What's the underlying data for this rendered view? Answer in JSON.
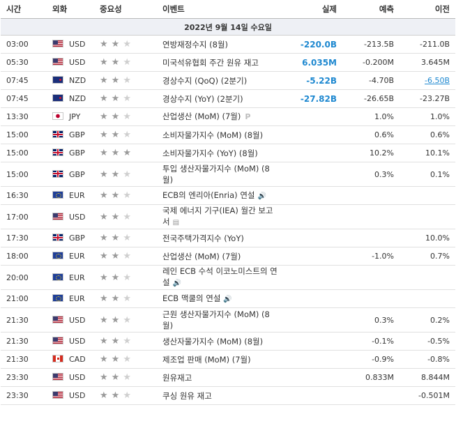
{
  "header": {
    "time": "시간",
    "currency": "외화",
    "importance": "중요성",
    "event": "이벤트",
    "actual": "실제",
    "forecast": "예측",
    "previous": "이전"
  },
  "date_label": "2022년 9월 14일 수요일",
  "colors": {
    "accent_blue": "#1e88d0",
    "date_row_bg": "#eef0f5"
  },
  "rows": [
    {
      "time": "03:00",
      "flag": "us-flag-icon",
      "cur": "USD",
      "stars": 2,
      "event": "연방재정수지 (8월)",
      "actual": "-220.0B",
      "actual_color": "blue",
      "forecast": "-213.5B",
      "previous": "-211.0B"
    },
    {
      "time": "05:30",
      "flag": "us-flag-icon",
      "cur": "USD",
      "stars": 2,
      "event": "미국석유협회 주간 원유 재고",
      "actual": "6.035M",
      "actual_color": "blue",
      "forecast": "-0.200M",
      "previous": "3.645M"
    },
    {
      "time": "07:45",
      "flag": "nz-flag-icon",
      "cur": "NZD",
      "stars": 2,
      "event": "경상수지 (QoQ) (2분기)",
      "actual": "-5.22B",
      "actual_color": "blue",
      "forecast": "-4.70B",
      "previous": "-6.50B",
      "previous_revised": true
    },
    {
      "time": "07:45",
      "flag": "nz-flag-icon",
      "cur": "NZD",
      "stars": 2,
      "event": "경상수지 (YoY) (2분기)",
      "actual": "-27.82B",
      "actual_color": "blue",
      "forecast": "-26.65B",
      "previous": "-23.27B"
    },
    {
      "time": "13:30",
      "flag": "jp-flag-icon",
      "cur": "JPY",
      "stars": 2,
      "event": "산업생산 (MoM) (7월)",
      "event_icon": "P",
      "actual": "",
      "forecast": "1.0%",
      "previous": "1.0%"
    },
    {
      "time": "15:00",
      "flag": "gb-flag-icon",
      "cur": "GBP",
      "stars": 2,
      "event": "소비자물가지수 (MoM) (8월)",
      "actual": "",
      "forecast": "0.6%",
      "previous": "0.6%"
    },
    {
      "time": "15:00",
      "flag": "gb-flag-icon",
      "cur": "GBP",
      "stars": 3,
      "event": "소비자물가지수 (YoY) (8월)",
      "actual": "",
      "forecast": "10.2%",
      "previous": "10.1%"
    },
    {
      "time": "15:00",
      "flag": "gb-flag-icon",
      "cur": "GBP",
      "stars": 2,
      "event": "투입 생산자물가지수 (MoM) (8월)",
      "tall": true,
      "actual": "",
      "forecast": "0.3%",
      "previous": "0.1%"
    },
    {
      "time": "16:30",
      "flag": "eu-flag-icon",
      "cur": "EUR",
      "stars": 2,
      "event": "ECB의 엔리아(Enria) 연설",
      "event_icon": "speaker",
      "actual": "",
      "forecast": "",
      "previous": ""
    },
    {
      "time": "17:00",
      "flag": "us-flag-icon",
      "cur": "USD",
      "stars": 2,
      "event": "국제 에너지 기구(IEA) 월간 보고서",
      "event_icon": "report",
      "tall": true,
      "actual": "",
      "forecast": "",
      "previous": ""
    },
    {
      "time": "17:30",
      "flag": "gb-flag-icon",
      "cur": "GBP",
      "stars": 2,
      "event": "전국주택가격지수 (YoY)",
      "actual": "",
      "forecast": "",
      "previous": "10.0%"
    },
    {
      "time": "18:00",
      "flag": "eu-flag-icon",
      "cur": "EUR",
      "stars": 2,
      "event": "산업생산 (MoM) (7월)",
      "actual": "",
      "forecast": "-1.0%",
      "previous": "0.7%"
    },
    {
      "time": "20:00",
      "flag": "eu-flag-icon",
      "cur": "EUR",
      "stars": 2,
      "event": "레인 ECB 수석 이코노미스트의 연설",
      "event_icon": "speaker",
      "tall": true,
      "actual": "",
      "forecast": "",
      "previous": ""
    },
    {
      "time": "21:00",
      "flag": "eu-flag-icon",
      "cur": "EUR",
      "stars": 2,
      "event": "ECB 맥쿨의 연설",
      "event_icon": "speaker",
      "actual": "",
      "forecast": "",
      "previous": ""
    },
    {
      "time": "21:30",
      "flag": "us-flag-icon",
      "cur": "USD",
      "stars": 2,
      "event": "근원 생산자물가지수 (MoM) (8월)",
      "tall": true,
      "actual": "",
      "forecast": "0.3%",
      "previous": "0.2%"
    },
    {
      "time": "21:30",
      "flag": "us-flag-icon",
      "cur": "USD",
      "stars": 2,
      "event": "생산자물가지수 (MoM) (8월)",
      "actual": "",
      "forecast": "-0.1%",
      "previous": "-0.5%"
    },
    {
      "time": "21:30",
      "flag": "ca-flag-icon",
      "cur": "CAD",
      "stars": 2,
      "event": "제조업 판매 (MoM) (7월)",
      "actual": "",
      "forecast": "-0.9%",
      "previous": "-0.8%"
    },
    {
      "time": "23:30",
      "flag": "us-flag-icon",
      "cur": "USD",
      "stars": 2,
      "event": "원유재고",
      "actual": "",
      "forecast": "0.833M",
      "previous": "8.844M"
    },
    {
      "time": "23:30",
      "flag": "us-flag-icon",
      "cur": "USD",
      "stars": 2,
      "event": "쿠싱 원유 재고",
      "actual": "",
      "forecast": "",
      "previous": "-0.501M"
    }
  ]
}
